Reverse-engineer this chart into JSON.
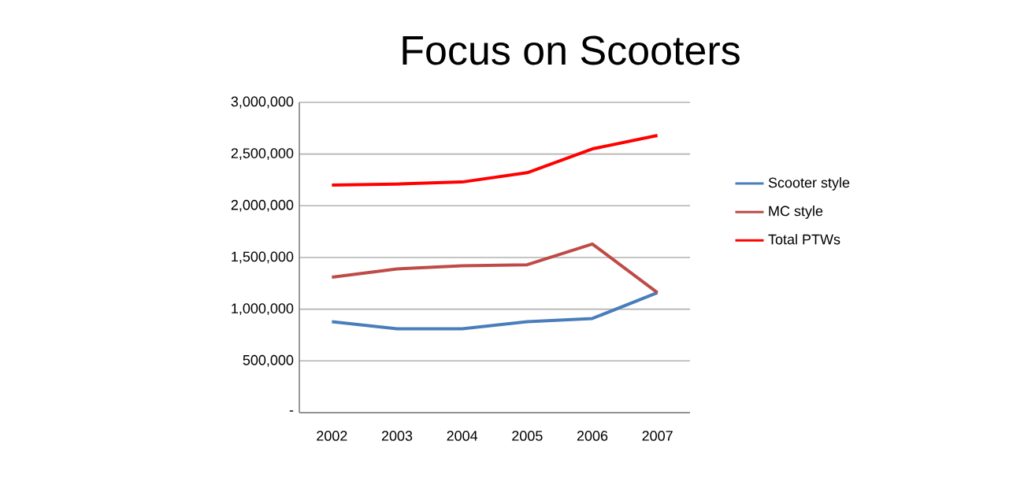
{
  "chart_data": {
    "type": "line",
    "title": "Focus on Scooters",
    "categories": [
      "2002",
      "2003",
      "2004",
      "2005",
      "2006",
      "2007"
    ],
    "series": [
      {
        "name": "Scooter style",
        "color": "#4a7ebb",
        "values": [
          880000,
          810000,
          810000,
          880000,
          910000,
          1160000
        ]
      },
      {
        "name": "MC style",
        "color": "#be4b48",
        "values": [
          1310000,
          1390000,
          1420000,
          1430000,
          1630000,
          1160000
        ]
      },
      {
        "name": "Total PTWs",
        "color": "#ff0000",
        "values": [
          2200000,
          2210000,
          2230000,
          2320000,
          2550000,
          2680000
        ]
      }
    ],
    "ylim": [
      0,
      3000000
    ],
    "yticks": [
      {
        "value": 0,
        "label": "-"
      },
      {
        "value": 500000,
        "label": "500,000"
      },
      {
        "value": 1000000,
        "label": "1,000,000"
      },
      {
        "value": 1500000,
        "label": "1,500,000"
      },
      {
        "value": 2000000,
        "label": "2,000,000"
      },
      {
        "value": 2500000,
        "label": "2,500,000"
      },
      {
        "value": 3000000,
        "label": "3,000,000"
      }
    ],
    "grid": "y",
    "legend": "right",
    "marker": "none",
    "line_style": "solid"
  }
}
